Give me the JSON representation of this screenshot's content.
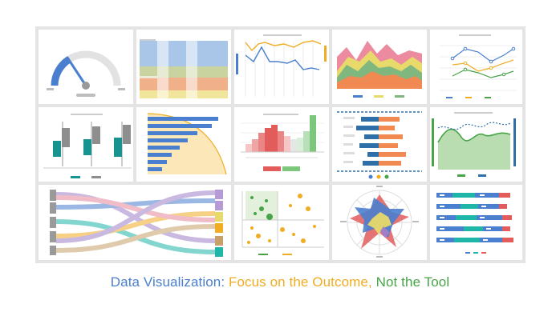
{
  "caption": {
    "part1": "Data Visualization: ",
    "part2": "Focus on the Outcome, ",
    "part3": "Not the Tool"
  },
  "colors": {
    "blue": "#4a7fcf",
    "orange": "#f0ac22",
    "green": "#47a447",
    "teal": "#17948f",
    "gray": "#8e8e8e",
    "red": "#e25c5c",
    "pink": "#e3879b",
    "purple": "#9e7fc7",
    "tile_border": "#e4e4e4"
  },
  "thumbnails": [
    "gauge-chart",
    "stacked-flow-chart",
    "dual-line-chart",
    "stacked-area-chart",
    "multi-line-chart",
    "box-plot-chart",
    "horizontal-bar-chart",
    "histogram-chart",
    "diverging-bar-chart",
    "spline-area-chart",
    "sankey-diagram",
    "bubble-scatter-chart",
    "radar-chart",
    "stacked-bar-chart"
  ]
}
